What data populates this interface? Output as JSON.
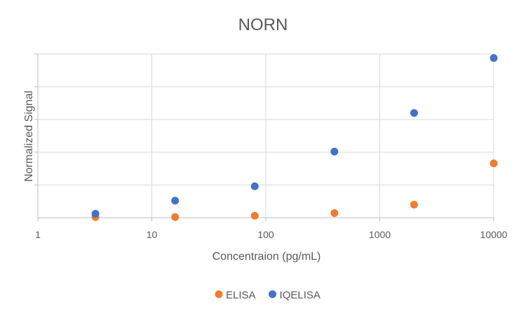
{
  "chart_data": {
    "type": "scatter",
    "title": "NORN",
    "xlabel": "Concentraion (pg/mL)",
    "ylabel": "Normalized Signal",
    "x_scale": "log",
    "xlim": [
      1,
      10000
    ],
    "ylim": [
      0,
      50
    ],
    "x_ticks": [
      "1",
      "10",
      "100",
      "1000",
      "10000"
    ],
    "grid": true,
    "legend_position": "bottom",
    "series": [
      {
        "name": "ELISA",
        "color": "#ED7D31",
        "x": [
          3.2,
          16,
          80,
          400,
          2000,
          10000
        ],
        "y": [
          0.2,
          0.2,
          0.6,
          1.4,
          4.0,
          16.6
        ]
      },
      {
        "name": "IQELISA",
        "color": "#4472C4",
        "x": [
          3.2,
          16,
          80,
          400,
          2000,
          10000
        ],
        "y": [
          1.2,
          5.2,
          9.6,
          20.2,
          32.0,
          48.8
        ]
      }
    ]
  }
}
